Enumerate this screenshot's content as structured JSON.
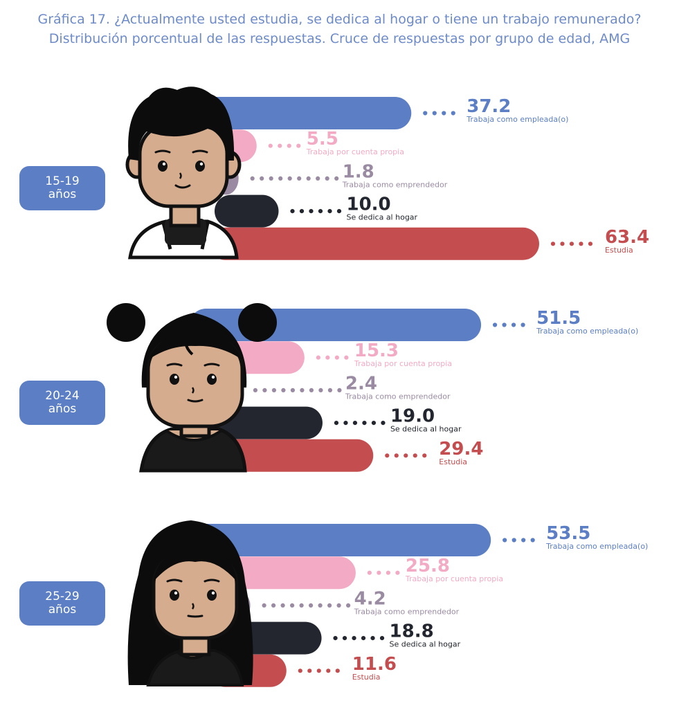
{
  "title": "Gráfica 17. ¿Actualmente usted estudia, se dedica al hogar o tiene un trabajo remunerado?",
  "subtitle": "Distribución porcentual de las respuestas. Cruce de respuestas por grupo de edad, AMG",
  "colors": {
    "title": "#6e8bc9",
    "age_box": "#5b7ec4",
    "skin": "#d5ac8e",
    "hair": "#0c0c0c"
  },
  "chart_data": {
    "type": "bar",
    "orientation": "horizontal",
    "title": "Gráfica 17. ¿Actualmente usted estudia, se dedica al hogar o tiene un trabajo remunerado?",
    "subtitle": "Distribución porcentual de las respuestas. Cruce de respuestas por grupo de edad, AMG",
    "categories": [
      "Trabaja como empleada(o)",
      "Trabaja por cuenta propia",
      "Trabaja como emprendedor",
      "Se dedica al hogar",
      "Estudia"
    ],
    "category_colors": [
      "#5b7ec4",
      "#f3aac4",
      "#9a8ba3",
      "#23262f",
      "#c34d4f"
    ],
    "groups": [
      {
        "name": "15-19\naños",
        "values": [
          37.2,
          5.5,
          1.8,
          10.0,
          63.4
        ],
        "value_labels": [
          "37.2",
          "5.5",
          "1.8",
          "10.0",
          "63.4"
        ]
      },
      {
        "name": "20-24\naños",
        "values": [
          51.5,
          15.3,
          2.4,
          19.0,
          29.4
        ],
        "value_labels": [
          "51.5",
          "15.3",
          "2.4",
          "19.0",
          "29.4"
        ]
      },
      {
        "name": "25-29\naños",
        "values": [
          53.5,
          25.8,
          4.2,
          18.8,
          11.6
        ],
        "value_labels": [
          "53.5",
          "25.8",
          "4.2",
          "18.8",
          "11.6"
        ]
      }
    ],
    "grid": false,
    "legend": "none"
  }
}
